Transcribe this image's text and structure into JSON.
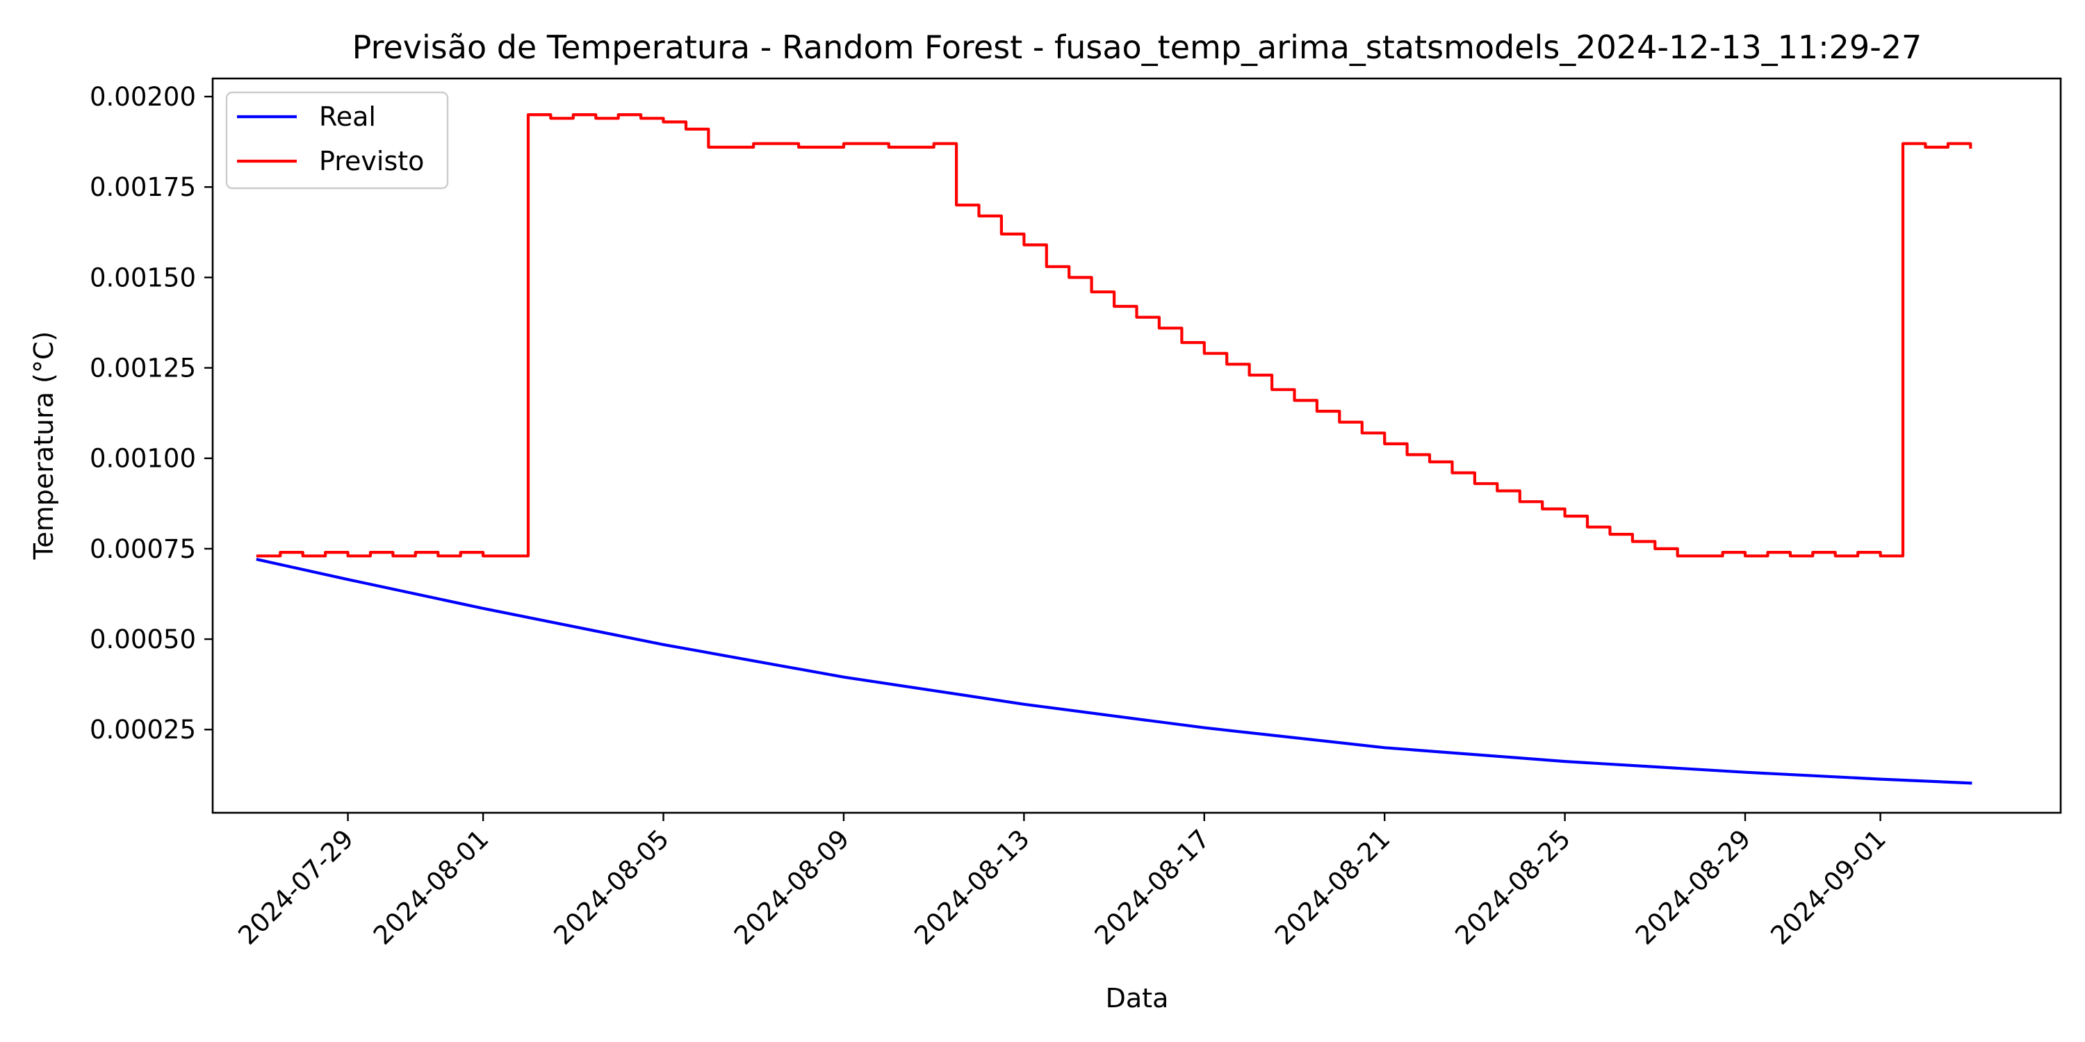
{
  "chart_data": {
    "type": "line",
    "title": "Previsão de Temperatura - Random Forest - fusao_temp_arima_statsmodels_2024-12-13_11:29-27",
    "xlabel": "Data",
    "ylabel": "Temperatura (°C)",
    "x_type": "date",
    "xlim": [
      "2024-07-26",
      "2024-09-05"
    ],
    "ylim": [
      2e-05,
      0.00205
    ],
    "x_ticks": [
      "2024-07-29",
      "2024-08-01",
      "2024-08-05",
      "2024-08-09",
      "2024-08-13",
      "2024-08-17",
      "2024-08-21",
      "2024-08-25",
      "2024-08-29",
      "2024-09-01"
    ],
    "y_ticks": [
      "0.00025",
      "0.00050",
      "0.00075",
      "0.00100",
      "0.00125",
      "0.00150",
      "0.00175",
      "0.00200"
    ],
    "grid": false,
    "legend_position": "upper left",
    "series": [
      {
        "name": "Real",
        "color": "#0000ff",
        "x": [
          "2024-07-27",
          "2024-07-29",
          "2024-08-01",
          "2024-08-05",
          "2024-08-09",
          "2024-08-13",
          "2024-08-17",
          "2024-08-21",
          "2024-08-25",
          "2024-08-29",
          "2024-09-01",
          "2024-09-03"
        ],
        "y": [
          0.00072,
          0.000665,
          0.000585,
          0.000485,
          0.000395,
          0.00032,
          0.000255,
          0.0002,
          0.000162,
          0.000132,
          0.000113,
          0.000102
        ]
      },
      {
        "name": "Previsto",
        "color": "#ff0000",
        "step": true,
        "x": [
          "2024-07-27",
          "2024-07-27 12:00",
          "2024-07-28",
          "2024-07-28 12:00",
          "2024-07-29",
          "2024-07-29 12:00",
          "2024-07-30",
          "2024-07-30 12:00",
          "2024-07-31",
          "2024-07-31 12:00",
          "2024-08-01",
          "2024-08-01 12:00",
          "2024-08-02",
          "2024-08-02 12:00",
          "2024-08-03",
          "2024-08-03 12:00",
          "2024-08-04",
          "2024-08-04 12:00",
          "2024-08-05",
          "2024-08-05 12:00",
          "2024-08-06",
          "2024-08-07",
          "2024-08-08",
          "2024-08-09",
          "2024-08-10",
          "2024-08-11",
          "2024-08-11 12:00",
          "2024-08-12",
          "2024-08-12 12:00",
          "2024-08-13",
          "2024-08-13 12:00",
          "2024-08-14",
          "2024-08-14 12:00",
          "2024-08-15",
          "2024-08-15 12:00",
          "2024-08-16",
          "2024-08-16 12:00",
          "2024-08-17",
          "2024-08-17 12:00",
          "2024-08-18",
          "2024-08-18 12:00",
          "2024-08-19",
          "2024-08-19 12:00",
          "2024-08-20",
          "2024-08-20 12:00",
          "2024-08-21",
          "2024-08-21 12:00",
          "2024-08-22",
          "2024-08-22 12:00",
          "2024-08-23",
          "2024-08-23 12:00",
          "2024-08-24",
          "2024-08-24 12:00",
          "2024-08-25",
          "2024-08-25 12:00",
          "2024-08-26",
          "2024-08-26 12:00",
          "2024-08-27",
          "2024-08-27 12:00",
          "2024-08-28",
          "2024-08-28 12:00",
          "2024-08-29",
          "2024-08-29 12:00",
          "2024-08-30",
          "2024-08-30 12:00",
          "2024-08-31",
          "2024-08-31 12:00",
          "2024-09-01",
          "2024-09-01 12:00",
          "2024-09-02",
          "2024-09-02 12:00",
          "2024-09-03"
        ],
        "y": [
          0.00073,
          0.00074,
          0.00073,
          0.00074,
          0.00073,
          0.00074,
          0.00073,
          0.00074,
          0.00073,
          0.00074,
          0.00073,
          0.00073,
          0.00195,
          0.00194,
          0.00195,
          0.00194,
          0.00195,
          0.00194,
          0.00193,
          0.00191,
          0.00186,
          0.00187,
          0.00186,
          0.00187,
          0.00186,
          0.00187,
          0.0017,
          0.00167,
          0.00162,
          0.00159,
          0.00153,
          0.0015,
          0.00146,
          0.00142,
          0.00139,
          0.00136,
          0.00132,
          0.00129,
          0.00126,
          0.00123,
          0.00119,
          0.00116,
          0.00113,
          0.0011,
          0.00107,
          0.00104,
          0.00101,
          0.00099,
          0.00096,
          0.00093,
          0.00091,
          0.00088,
          0.00086,
          0.00084,
          0.00081,
          0.00079,
          0.00077,
          0.00075,
          0.00073,
          0.00073,
          0.00074,
          0.00073,
          0.00074,
          0.00073,
          0.00074,
          0.00073,
          0.00074,
          0.00073,
          0.00187,
          0.00186,
          0.00187,
          0.00186
        ]
      }
    ]
  }
}
